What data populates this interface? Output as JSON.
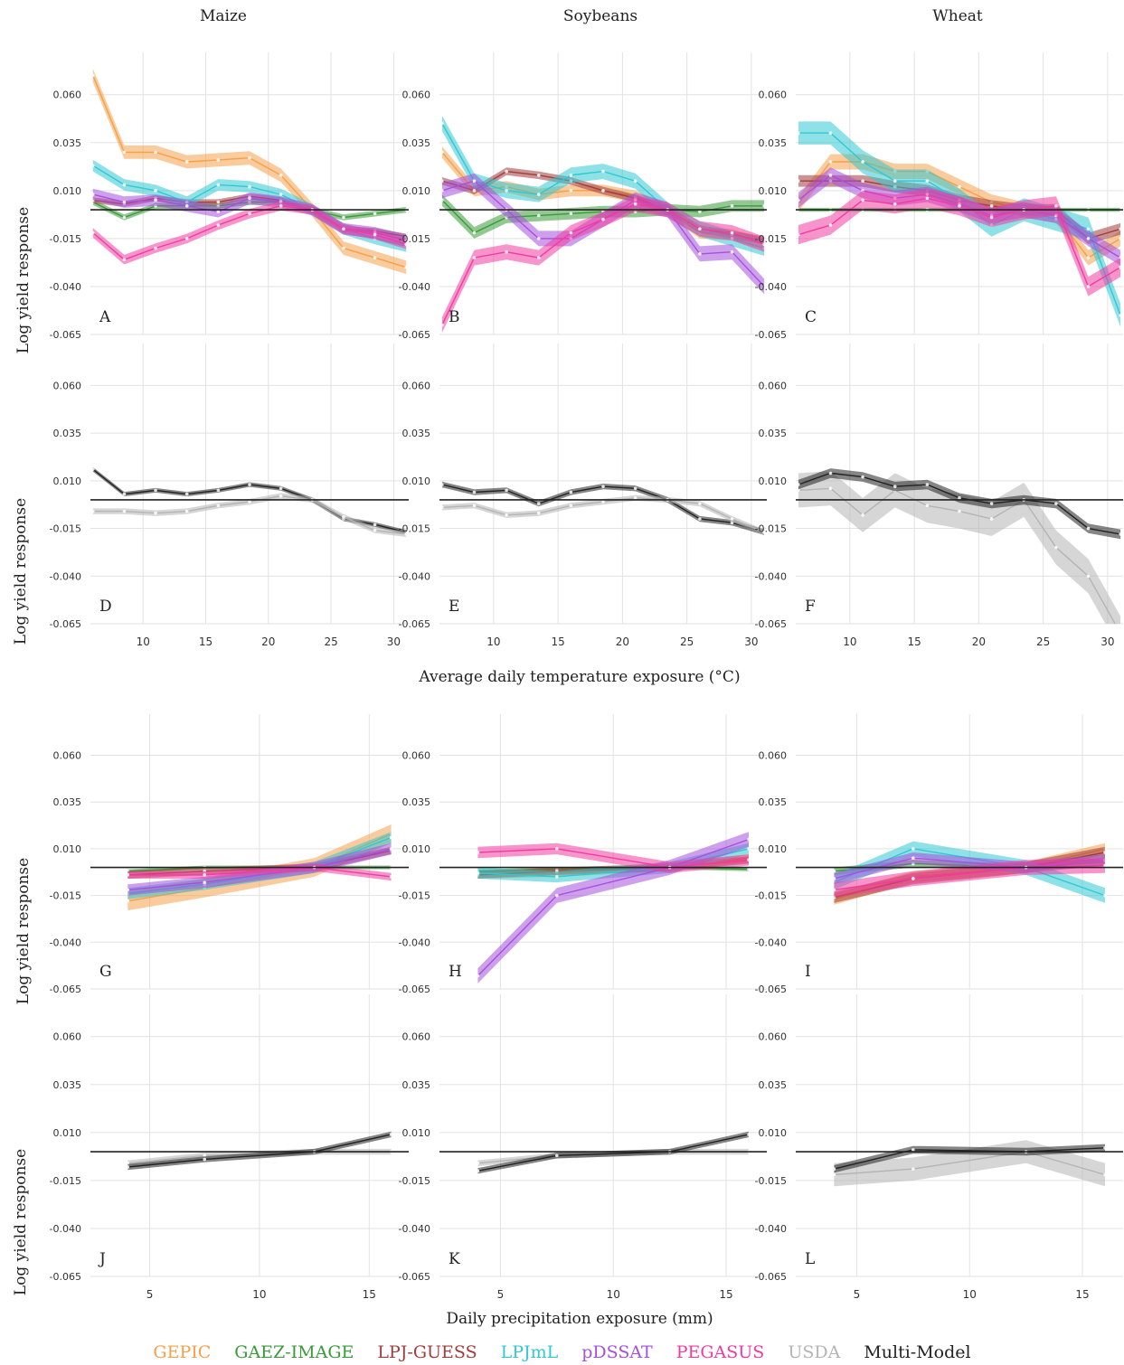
{
  "columns": [
    "Maize",
    "Soybeans",
    "Wheat"
  ],
  "ylabel": "Log yield response",
  "xlabel_temp": "Average daily temperature exposure (°C)",
  "xlabel_prec": "Daily precipitation exposure (mm)",
  "yticks": [
    "0.060",
    "0.035",
    "0.010",
    "-0.015",
    "-0.040",
    "-0.065"
  ],
  "legend": [
    {
      "name": "GEPIC",
      "color": "#f5a04a"
    },
    {
      "name": "GAEZ-IMAGE",
      "color": "#3a9a3a"
    },
    {
      "name": "LPJ-GUESS",
      "color": "#a03c3c"
    },
    {
      "name": "LPJmL",
      "color": "#32c8d2"
    },
    {
      "name": "pDSSAT",
      "color": "#a650dc"
    },
    {
      "name": "PEGASUS",
      "color": "#f03ca0"
    },
    {
      "name": "USDA",
      "color": "#b4b4b4"
    },
    {
      "name": "Multi-Model",
      "color": "#222222"
    }
  ],
  "chart_data": {
    "type": "line",
    "temp_x": [
      6,
      8.5,
      11,
      13.5,
      16,
      18.5,
      21,
      23.5,
      26,
      28.5,
      31
    ],
    "temp_xticks": [
      10,
      15,
      20,
      25,
      30
    ],
    "temp_xlim": [
      5.8,
      31.2
    ],
    "prec_x": [
      4,
      7.5,
      12.5,
      16
    ],
    "prec_xticks": [
      5,
      10,
      15
    ],
    "prec_xlim": [
      2.3,
      16.8
    ],
    "ylim": [
      -0.065,
      0.082
    ],
    "panels": [
      {
        "label": "A",
        "series": [
          {
            "name": "GEPIC",
            "y": [
              0.07,
              0.03,
              0.03,
              0.025,
              0.026,
              0.027,
              0.018,
              0,
              -0.02,
              -0.025,
              -0.03
            ],
            "band": 0.0035
          },
          {
            "name": "GAEZ-IMAGE",
            "y": [
              0.004,
              -0.004,
              0.002,
              0.002,
              0.002,
              0.004,
              0.004,
              0,
              -0.004,
              -0.002,
              0
            ],
            "band": 0.0015
          },
          {
            "name": "LPJ-GUESS",
            "y": [
              0.005,
              0.003,
              0.006,
              0.004,
              0.004,
              0.007,
              0.005,
              0,
              -0.01,
              -0.011,
              -0.014
            ],
            "band": 0.0015
          },
          {
            "name": "LPJmL",
            "y": [
              0.023,
              0.013,
              0.01,
              0.004,
              0.013,
              0.012,
              0.008,
              0,
              -0.01,
              -0.015,
              -0.019
            ],
            "band": 0.003
          },
          {
            "name": "pDSSAT",
            "y": [
              0.008,
              0.004,
              0.005,
              0.002,
              -0.001,
              0.006,
              0.004,
              0,
              -0.01,
              -0.012,
              -0.016
            ],
            "band": 0.003
          },
          {
            "name": "PEGASUS",
            "y": [
              -0.012,
              -0.026,
              -0.02,
              -0.015,
              -0.008,
              -0.002,
              0.002,
              0,
              -0.01,
              -0.013,
              -0.018
            ],
            "band": 0.0025
          }
        ]
      },
      {
        "label": "B",
        "series": [
          {
            "name": "GEPIC",
            "y": [
              0.03,
              0.01,
              0.012,
              0.008,
              0.01,
              0.01,
              0.007,
              0,
              -0.012,
              -0.013,
              -0.018
            ],
            "band": 0.003
          },
          {
            "name": "GAEZ-IMAGE",
            "y": [
              0.005,
              -0.012,
              -0.004,
              -0.003,
              -0.002,
              -0.001,
              -0.001,
              0,
              -0.001,
              0.002,
              0.002
            ],
            "band": 0.003
          },
          {
            "name": "LPJ-GUESS",
            "y": [
              0.015,
              0.01,
              0.02,
              0.018,
              0.015,
              0.01,
              0.006,
              0,
              -0.01,
              -0.013,
              -0.016
            ],
            "band": 0.002
          },
          {
            "name": "LPJmL",
            "y": [
              0.045,
              0.015,
              0.01,
              0.008,
              0.018,
              0.02,
              0.015,
              0,
              -0.01,
              -0.015,
              -0.02
            ],
            "band": 0.004
          },
          {
            "name": "pDSSAT",
            "y": [
              0.01,
              0.015,
              0,
              -0.015,
              -0.015,
              -0.005,
              0.005,
              0,
              -0.023,
              -0.022,
              -0.04
            ],
            "band": 0.004
          },
          {
            "name": "PEGASUS",
            "y": [
              -0.06,
              -0.025,
              -0.022,
              -0.025,
              -0.012,
              -0.005,
              0.003,
              0,
              -0.01,
              -0.012,
              -0.018
            ],
            "band": 0.004
          }
        ]
      },
      {
        "label": "C",
        "series": [
          {
            "name": "GEPIC",
            "y": [
              0.003,
              0.025,
              0.025,
              0.02,
              0.02,
              0.012,
              0.004,
              0,
              -0.003,
              -0.025,
              -0.015
            ],
            "band": 0.004
          },
          {
            "name": "GAEZ-IMAGE",
            "y": [
              0,
              0,
              0,
              0,
              0,
              0,
              0,
              0,
              0,
              0,
              0
            ],
            "band": 0.001
          },
          {
            "name": "LPJ-GUESS",
            "y": [
              0.015,
              0.015,
              0.015,
              0.012,
              0.01,
              0.005,
              0.002,
              0,
              0,
              -0.015,
              -0.01
            ],
            "band": 0.003
          },
          {
            "name": "LPJmL",
            "y": [
              0.04,
              0.04,
              0.025,
              0.015,
              0.015,
              0.005,
              -0.008,
              0,
              -0.005,
              -0.01,
              -0.055
            ],
            "band": 0.006
          },
          {
            "name": "pDSSAT",
            "y": [
              0.005,
              0.018,
              0.01,
              0.006,
              0.008,
              0.003,
              -0.003,
              0,
              -0.003,
              -0.015,
              -0.025
            ],
            "band": 0.004
          },
          {
            "name": "PEGASUS",
            "y": [
              -0.013,
              -0.008,
              0.005,
              0.003,
              0.006,
              0.002,
              -0.004,
              0,
              0.002,
              -0.04,
              -0.03
            ],
            "band": 0.005
          }
        ]
      },
      {
        "label": "D",
        "series": [
          {
            "name": "Multi-Model",
            "y": [
              0.016,
              0.003,
              0.005,
              0.003,
              0.005,
              0.008,
              0.006,
              0,
              -0.01,
              -0.013,
              -0.017
            ],
            "band": 0.0012
          },
          {
            "name": "USDA",
            "y": [
              -0.006,
              -0.006,
              -0.007,
              -0.006,
              -0.003,
              -0.001,
              0.002,
              0,
              -0.009,
              -0.016,
              -0.018
            ],
            "band": 0.0015
          }
        ]
      },
      {
        "label": "E",
        "series": [
          {
            "name": "Multi-Model",
            "y": [
              0.008,
              0.004,
              0.005,
              -0.002,
              0.004,
              0.007,
              0.006,
              0,
              -0.01,
              -0.012,
              -0.017
            ],
            "band": 0.0015
          },
          {
            "name": "USDA",
            "y": [
              -0.004,
              -0.003,
              -0.008,
              -0.007,
              -0.003,
              -0.001,
              0.001,
              0,
              -0.002,
              -0.01,
              -0.017
            ],
            "band": 0.0015
          }
        ]
      },
      {
        "label": "F",
        "series": [
          {
            "name": "USDA",
            "y": [
              0.005,
              0.006,
              -0.008,
              0.005,
              -0.003,
              -0.006,
              -0.01,
              0,
              -0.025,
              -0.04,
              -0.07
            ],
            "band": 0.009
          },
          {
            "name": "Multi-Model",
            "y": [
              0.008,
              0.014,
              0.012,
              0.007,
              0.008,
              0.001,
              -0.002,
              0,
              -0.002,
              -0.015,
              -0.018
            ],
            "band": 0.0025
          }
        ]
      },
      {
        "label": "G",
        "series": [
          {
            "name": "GEPIC",
            "y": [
              -0.018,
              -0.011,
              0,
              0.018
            ],
            "band": 0.005
          },
          {
            "name": "GAEZ-IMAGE",
            "y": [
              -0.002,
              0,
              0,
              0
            ],
            "band": 0.001
          },
          {
            "name": "LPJ-GUESS",
            "y": [
              -0.004,
              -0.002,
              0,
              0.009
            ],
            "band": 0.002
          },
          {
            "name": "LPJmL",
            "y": [
              -0.014,
              -0.009,
              0,
              0.016
            ],
            "band": 0.003
          },
          {
            "name": "pDSSAT",
            "y": [
              -0.012,
              -0.008,
              0,
              0.01
            ],
            "band": 0.003
          },
          {
            "name": "PEGASUS",
            "y": [
              -0.004,
              -0.004,
              0,
              -0.005
            ],
            "band": 0.002
          }
        ]
      },
      {
        "label": "H",
        "series": [
          {
            "name": "GEPIC",
            "y": [
              -0.004,
              -0.003,
              0,
              0.005
            ],
            "band": 0.002
          },
          {
            "name": "GAEZ-IMAGE",
            "y": [
              -0.002,
              -0.001,
              0,
              -0.001
            ],
            "band": 0.001
          },
          {
            "name": "LPJ-GUESS",
            "y": [
              -0.004,
              -0.002,
              0,
              0.004
            ],
            "band": 0.002
          },
          {
            "name": "LPJmL",
            "y": [
              -0.003,
              -0.005,
              0,
              0.01
            ],
            "band": 0.003
          },
          {
            "name": "pDSSAT",
            "y": [
              -0.058,
              -0.015,
              0,
              0.015
            ],
            "band": 0.004
          },
          {
            "name": "PEGASUS",
            "y": [
              0.008,
              0.01,
              0,
              0.004
            ],
            "band": 0.003
          }
        ]
      },
      {
        "label": "I",
        "series": [
          {
            "name": "GEPIC",
            "y": [
              -0.017,
              -0.005,
              0,
              0.01
            ],
            "band": 0.003
          },
          {
            "name": "GAEZ-IMAGE",
            "y": [
              -0.002,
              0.002,
              0,
              0.003
            ],
            "band": 0.002
          },
          {
            "name": "LPJ-GUESS",
            "y": [
              -0.016,
              -0.006,
              0,
              0.008
            ],
            "band": 0.003
          },
          {
            "name": "LPJmL",
            "y": [
              -0.008,
              0.01,
              0,
              -0.015
            ],
            "band": 0.004
          },
          {
            "name": "pDSSAT",
            "y": [
              -0.006,
              0.005,
              0,
              0.004
            ],
            "band": 0.003
          },
          {
            "name": "PEGASUS",
            "y": [
              -0.012,
              -0.006,
              0,
              0.001
            ],
            "band": 0.004
          }
        ]
      },
      {
        "label": "J",
        "series": [
          {
            "name": "USDA",
            "y": [
              -0.006,
              -0.002,
              0,
              0
            ],
            "band": 0.0015
          },
          {
            "name": "Multi-Model",
            "y": [
              -0.008,
              -0.004,
              0,
              0.009
            ],
            "band": 0.0015
          }
        ]
      },
      {
        "label": "K",
        "series": [
          {
            "name": "USDA",
            "y": [
              -0.006,
              -0.002,
              0,
              0
            ],
            "band": 0.0015
          },
          {
            "name": "Multi-Model",
            "y": [
              -0.01,
              -0.002,
              0,
              0.009
            ],
            "band": 0.0015
          }
        ]
      },
      {
        "label": "L",
        "series": [
          {
            "name": "USDA",
            "y": [
              -0.012,
              -0.009,
              0,
              -0.012
            ],
            "band": 0.006
          },
          {
            "name": "Multi-Model",
            "y": [
              -0.009,
              0.001,
              0,
              0.002
            ],
            "band": 0.002
          }
        ]
      }
    ]
  }
}
